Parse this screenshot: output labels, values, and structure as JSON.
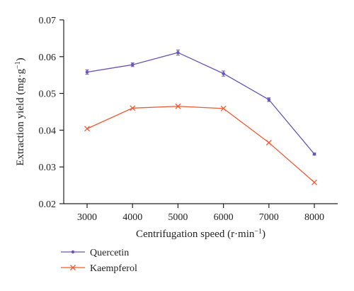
{
  "chart_data": {
    "type": "line",
    "title": "",
    "xlabel_prefix": "Centrifugation speed (r·min",
    "xlabel_sup": "−1",
    "xlabel_suffix": ")",
    "ylabel_prefix": "Extraction yield (mg·g",
    "ylabel_sup": "−1",
    "ylabel_suffix": ")",
    "x": [
      3000,
      4000,
      5000,
      6000,
      7000,
      8000
    ],
    "x_ticks": [
      "3000",
      "4000",
      "5000",
      "6000",
      "7000",
      "8000"
    ],
    "y_ticks": [
      "0.02",
      "0.03",
      "0.04",
      "0.05",
      "0.06",
      "0.07"
    ],
    "ylim": [
      0.02,
      0.07
    ],
    "grid": false,
    "legend_position": "bottom-left, below plot",
    "series": [
      {
        "name": "Quercetin",
        "color": "#6a56b8",
        "marker": "dot",
        "values": [
          0.0558,
          0.0578,
          0.0611,
          0.0554,
          0.0483,
          0.0335
        ],
        "errors": [
          0.0006,
          0.0005,
          0.0007,
          0.0007,
          0.0005,
          0.0003
        ]
      },
      {
        "name": "Kaempferol",
        "color": "#ee5a33",
        "marker": "x",
        "values": [
          0.0404,
          0.046,
          0.0465,
          0.0459,
          0.0366,
          0.0258
        ],
        "errors": [
          0,
          0,
          0,
          0,
          0,
          0
        ]
      }
    ]
  }
}
